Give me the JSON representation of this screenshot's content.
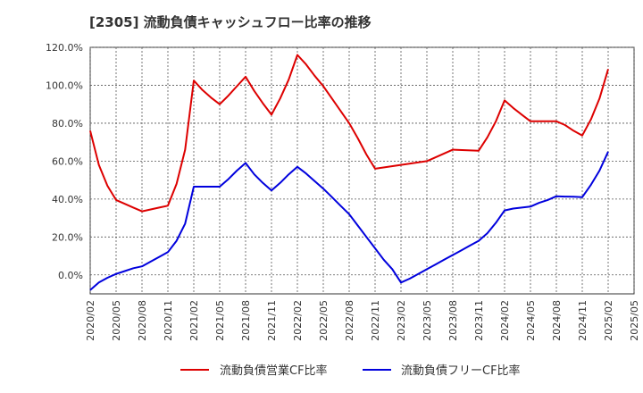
{
  "chart_data": {
    "type": "line",
    "title": "[2305]  流動負債キャッシュフロー比率の推移",
    "xlabel": "",
    "ylabel": "",
    "ylim": [
      -10,
      120
    ],
    "y_ticks": [
      0,
      20,
      40,
      60,
      80,
      100,
      120
    ],
    "y_tick_labels": [
      "0.0%",
      "20.0%",
      "40.0%",
      "60.0%",
      "80.0%",
      "100.0%",
      "120.0%"
    ],
    "x_tick_labels": [
      "2020/02",
      "2020/05",
      "2020/08",
      "2020/11",
      "2021/02",
      "2021/05",
      "2021/08",
      "2021/11",
      "2022/02",
      "2022/05",
      "2022/08",
      "2022/11",
      "2023/02",
      "2023/05",
      "2023/08",
      "2023/11",
      "2024/02",
      "2024/05",
      "2024/08",
      "2024/11",
      "2025/02",
      "2025/05"
    ],
    "xlim": [
      "2020/02",
      "2025/05"
    ],
    "grid": true,
    "legend_position": "bottom",
    "series": [
      {
        "name": "流動負債営業CF比率",
        "color": "#dd0000",
        "x": [
          "2020/02",
          "2020/03",
          "2020/04",
          "2020/05",
          "2020/06",
          "2020/07",
          "2020/08",
          "2020/09",
          "2020/10",
          "2020/11",
          "2020/12",
          "2021/01",
          "2021/02",
          "2021/03",
          "2021/04",
          "2021/05",
          "2021/06",
          "2021/07",
          "2021/08",
          "2021/09",
          "2021/10",
          "2021/11",
          "2021/12",
          "2022/01",
          "2022/02",
          "2022/03",
          "2022/04",
          "2022/05",
          "2022/06",
          "2022/07",
          "2022/08",
          "2022/09",
          "2022/10",
          "2022/11",
          "2023/02",
          "2023/05",
          "2023/08",
          "2023/11",
          "2023/12",
          "2024/01",
          "2024/02",
          "2024/03",
          "2024/04",
          "2024/05",
          "2024/06",
          "2024/07",
          "2024/08",
          "2024/09",
          "2024/10",
          "2024/11",
          "2024/12",
          "2025/01",
          "2025/02"
        ],
        "values": [
          76,
          58,
          47,
          39.5,
          37.5,
          35.5,
          33.5,
          34.5,
          35.5,
          36.5,
          48,
          66,
          102.5,
          97.5,
          93.5,
          90,
          94.5,
          99.5,
          104.5,
          97,
          90.5,
          84.5,
          93,
          103,
          116,
          111,
          105,
          99.5,
          93,
          86.5,
          80,
          72,
          63.5,
          56,
          58,
          60,
          66,
          65.5,
          72.5,
          81,
          92,
          88,
          84.5,
          81,
          81,
          81,
          81,
          79,
          76,
          73.5,
          82,
          93,
          108.5
        ]
      },
      {
        "name": "流動負債フリーCF比率",
        "color": "#0000dd",
        "x": [
          "2020/02",
          "2020/03",
          "2020/04",
          "2020/05",
          "2020/06",
          "2020/07",
          "2020/08",
          "2020/09",
          "2020/10",
          "2020/11",
          "2020/12",
          "2021/01",
          "2021/02",
          "2021/03",
          "2021/04",
          "2021/05",
          "2021/06",
          "2021/07",
          "2021/08",
          "2021/09",
          "2021/10",
          "2021/11",
          "2021/12",
          "2022/01",
          "2022/02",
          "2022/03",
          "2022/04",
          "2022/05",
          "2022/06",
          "2022/07",
          "2022/08",
          "2022/09",
          "2022/10",
          "2022/11",
          "2022/12",
          "2023/01",
          "2023/02",
          "2023/03",
          "2023/04",
          "2023/05",
          "2023/06",
          "2023/07",
          "2023/08",
          "2023/09",
          "2023/10",
          "2023/11",
          "2023/12",
          "2024/01",
          "2024/02",
          "2024/03",
          "2024/04",
          "2024/05",
          "2024/06",
          "2024/07",
          "2024/08",
          "2024/09",
          "2024/10",
          "2024/11",
          "2024/12",
          "2025/01",
          "2025/02"
        ],
        "values": [
          -8,
          -4,
          -1.5,
          0.5,
          2,
          3.5,
          4.5,
          7,
          9.5,
          12,
          18,
          27,
          46.5,
          46.5,
          46.5,
          46.5,
          50.5,
          55,
          59,
          53,
          48.5,
          44.5,
          48.5,
          53,
          57,
          53.5,
          49.5,
          45.5,
          41,
          36.5,
          32,
          26,
          20,
          14,
          8,
          3,
          -4,
          -2,
          0.5,
          3,
          5.5,
          8,
          10.5,
          13,
          15.5,
          18,
          22,
          27.5,
          34,
          35,
          35.5,
          36,
          38,
          39.5,
          41.5,
          41.3,
          41.2,
          41,
          47.5,
          55,
          65
        ]
      }
    ]
  }
}
